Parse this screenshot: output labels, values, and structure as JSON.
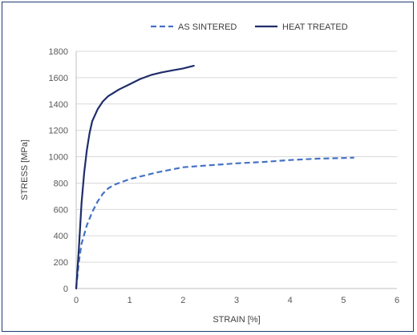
{
  "chart_data": {
    "type": "line",
    "xlabel": "STRAIN   [%]",
    "ylabel": "STRESS   [MPa]",
    "xlim": [
      0,
      6
    ],
    "ylim": [
      0,
      1800
    ],
    "x_ticks": [
      "0",
      "1",
      "2",
      "3",
      "4",
      "5",
      "6"
    ],
    "y_ticks": [
      "0",
      "200",
      "400",
      "600",
      "800",
      "1000",
      "1200",
      "1400",
      "1600",
      "1800"
    ],
    "grid": "horizontal",
    "legend_position": "top",
    "series": [
      {
        "name": "AS SINTERED",
        "style": "dashed",
        "color": "#4472c4",
        "points": [
          [
            0,
            0
          ],
          [
            0.05,
            200
          ],
          [
            0.1,
            340
          ],
          [
            0.2,
            480
          ],
          [
            0.3,
            580
          ],
          [
            0.4,
            660
          ],
          [
            0.5,
            720
          ],
          [
            0.6,
            760
          ],
          [
            0.7,
            785
          ],
          [
            0.8,
            800
          ],
          [
            1.0,
            830
          ],
          [
            1.2,
            850
          ],
          [
            1.5,
            880
          ],
          [
            2.0,
            920
          ],
          [
            2.5,
            935
          ],
          [
            3.0,
            950
          ],
          [
            3.5,
            960
          ],
          [
            4.0,
            975
          ],
          [
            4.5,
            985
          ],
          [
            5.0,
            990
          ],
          [
            5.2,
            993
          ]
        ]
      },
      {
        "name": "HEAT TREATED",
        "style": "solid",
        "color": "#1f2d6b",
        "points": [
          [
            0,
            0
          ],
          [
            0.05,
            300
          ],
          [
            0.1,
            650
          ],
          [
            0.15,
            880
          ],
          [
            0.2,
            1050
          ],
          [
            0.25,
            1180
          ],
          [
            0.3,
            1270
          ],
          [
            0.4,
            1360
          ],
          [
            0.5,
            1420
          ],
          [
            0.6,
            1460
          ],
          [
            0.8,
            1510
          ],
          [
            1.0,
            1550
          ],
          [
            1.2,
            1590
          ],
          [
            1.4,
            1620
          ],
          [
            1.6,
            1640
          ],
          [
            1.8,
            1655
          ],
          [
            2.0,
            1670
          ],
          [
            2.2,
            1690
          ]
        ]
      }
    ]
  }
}
